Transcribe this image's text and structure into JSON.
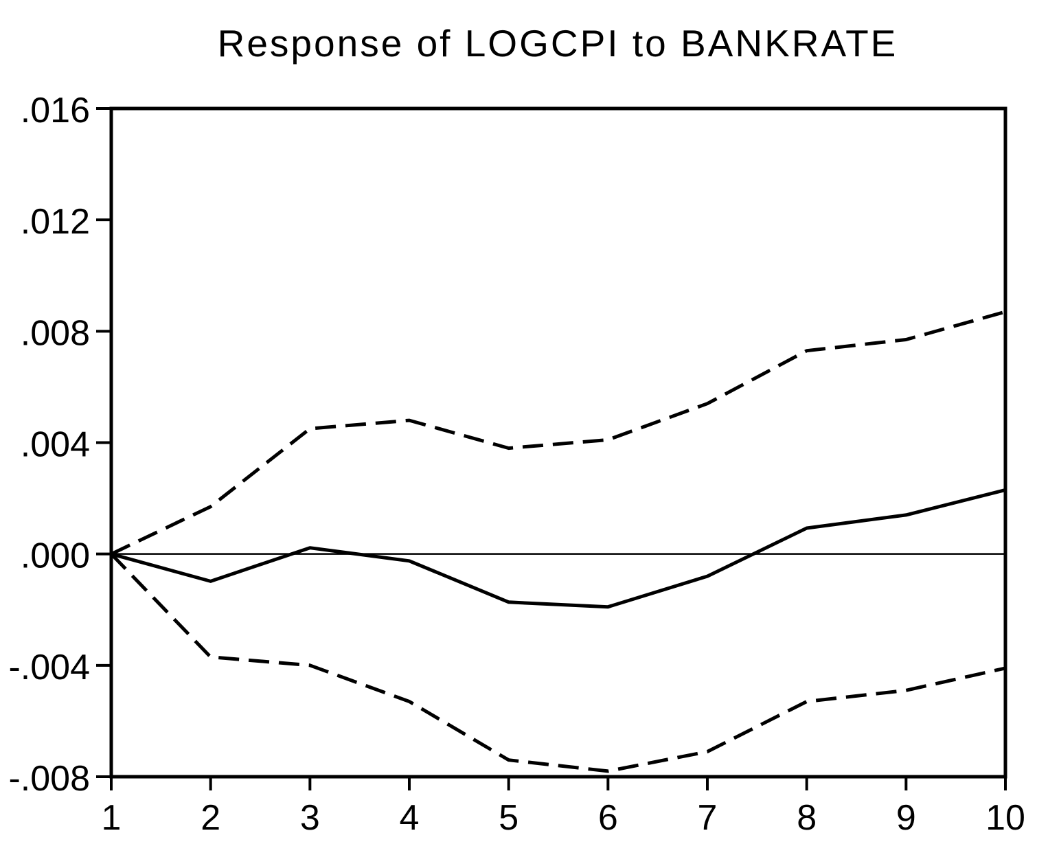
{
  "chart_data": {
    "type": "line",
    "title": "Response of LOGCPI to BANKRATE",
    "xlabel": "",
    "ylabel": "",
    "x": [
      1,
      2,
      3,
      4,
      5,
      6,
      7,
      8,
      9,
      10
    ],
    "x_tick_labels": [
      "1",
      "2",
      "3",
      "4",
      "5",
      "6",
      "7",
      "8",
      "9",
      "10"
    ],
    "xlim": [
      1,
      10
    ],
    "ylim": [
      -0.008,
      0.016
    ],
    "y_ticks": [
      -0.008,
      -0.004,
      0.0,
      0.004,
      0.008,
      0.012,
      0.016
    ],
    "y_tick_labels": [
      "-.008",
      "-.004",
      ".000",
      ".004",
      ".008",
      ".012",
      ".016"
    ],
    "zero_line": true,
    "grid": false,
    "legend": "none",
    "series": [
      {
        "style": "solid",
        "values": [
          0.0,
          -0.00098,
          0.00022,
          -0.00025,
          -0.00173,
          -0.0019,
          -0.0008,
          0.00093,
          0.0014,
          0.0023
        ]
      },
      {
        "style": "dashed",
        "values": [
          0.0,
          0.0017,
          0.0045,
          0.0048,
          0.0038,
          0.0041,
          0.0054,
          0.0073,
          0.0077,
          0.0087
        ]
      },
      {
        "style": "dashed",
        "values": [
          0.0,
          -0.0037,
          -0.004,
          -0.0053,
          -0.0074,
          -0.0078,
          -0.0071,
          -0.0053,
          -0.0049,
          -0.0041
        ]
      }
    ],
    "colors": {
      "line": "#000000",
      "background": "#ffffff"
    }
  }
}
